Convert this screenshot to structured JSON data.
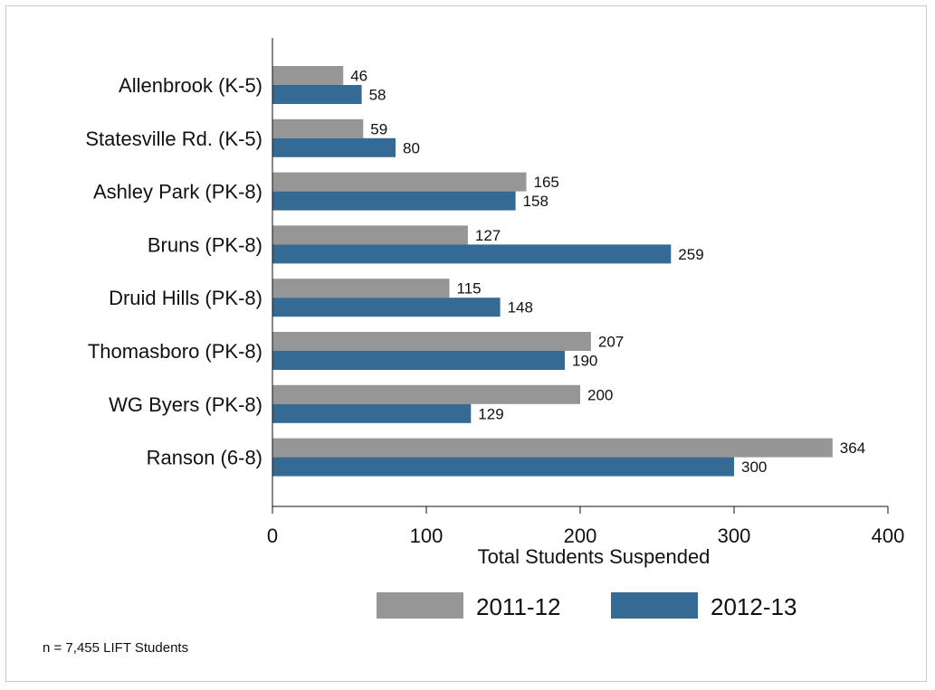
{
  "chart_data": {
    "type": "bar",
    "orientation": "horizontal",
    "categories": [
      "Allenbrook (K-5)",
      "Statesville Rd. (K-5)",
      "Ashley Park (PK-8)",
      "Bruns (PK-8)",
      "Druid Hills (PK-8)",
      "Thomasboro (PK-8)",
      "WG Byers (PK-8)",
      "Ranson (6-8)"
    ],
    "series": [
      {
        "name": "2011-12",
        "color": "#969696",
        "values": [
          46,
          59,
          165,
          127,
          115,
          207,
          200,
          364
        ]
      },
      {
        "name": "2012-13",
        "color": "#356a95",
        "values": [
          58,
          80,
          158,
          259,
          148,
          190,
          129,
          300
        ]
      }
    ],
    "xlabel": "Total Students Suspended",
    "xlim": [
      0,
      400
    ],
    "xticks": [
      0,
      100,
      200,
      300,
      400
    ],
    "grid": false,
    "data_labels": true,
    "legend_position": "bottom"
  },
  "note": "n = 7,455 LIFT Students"
}
